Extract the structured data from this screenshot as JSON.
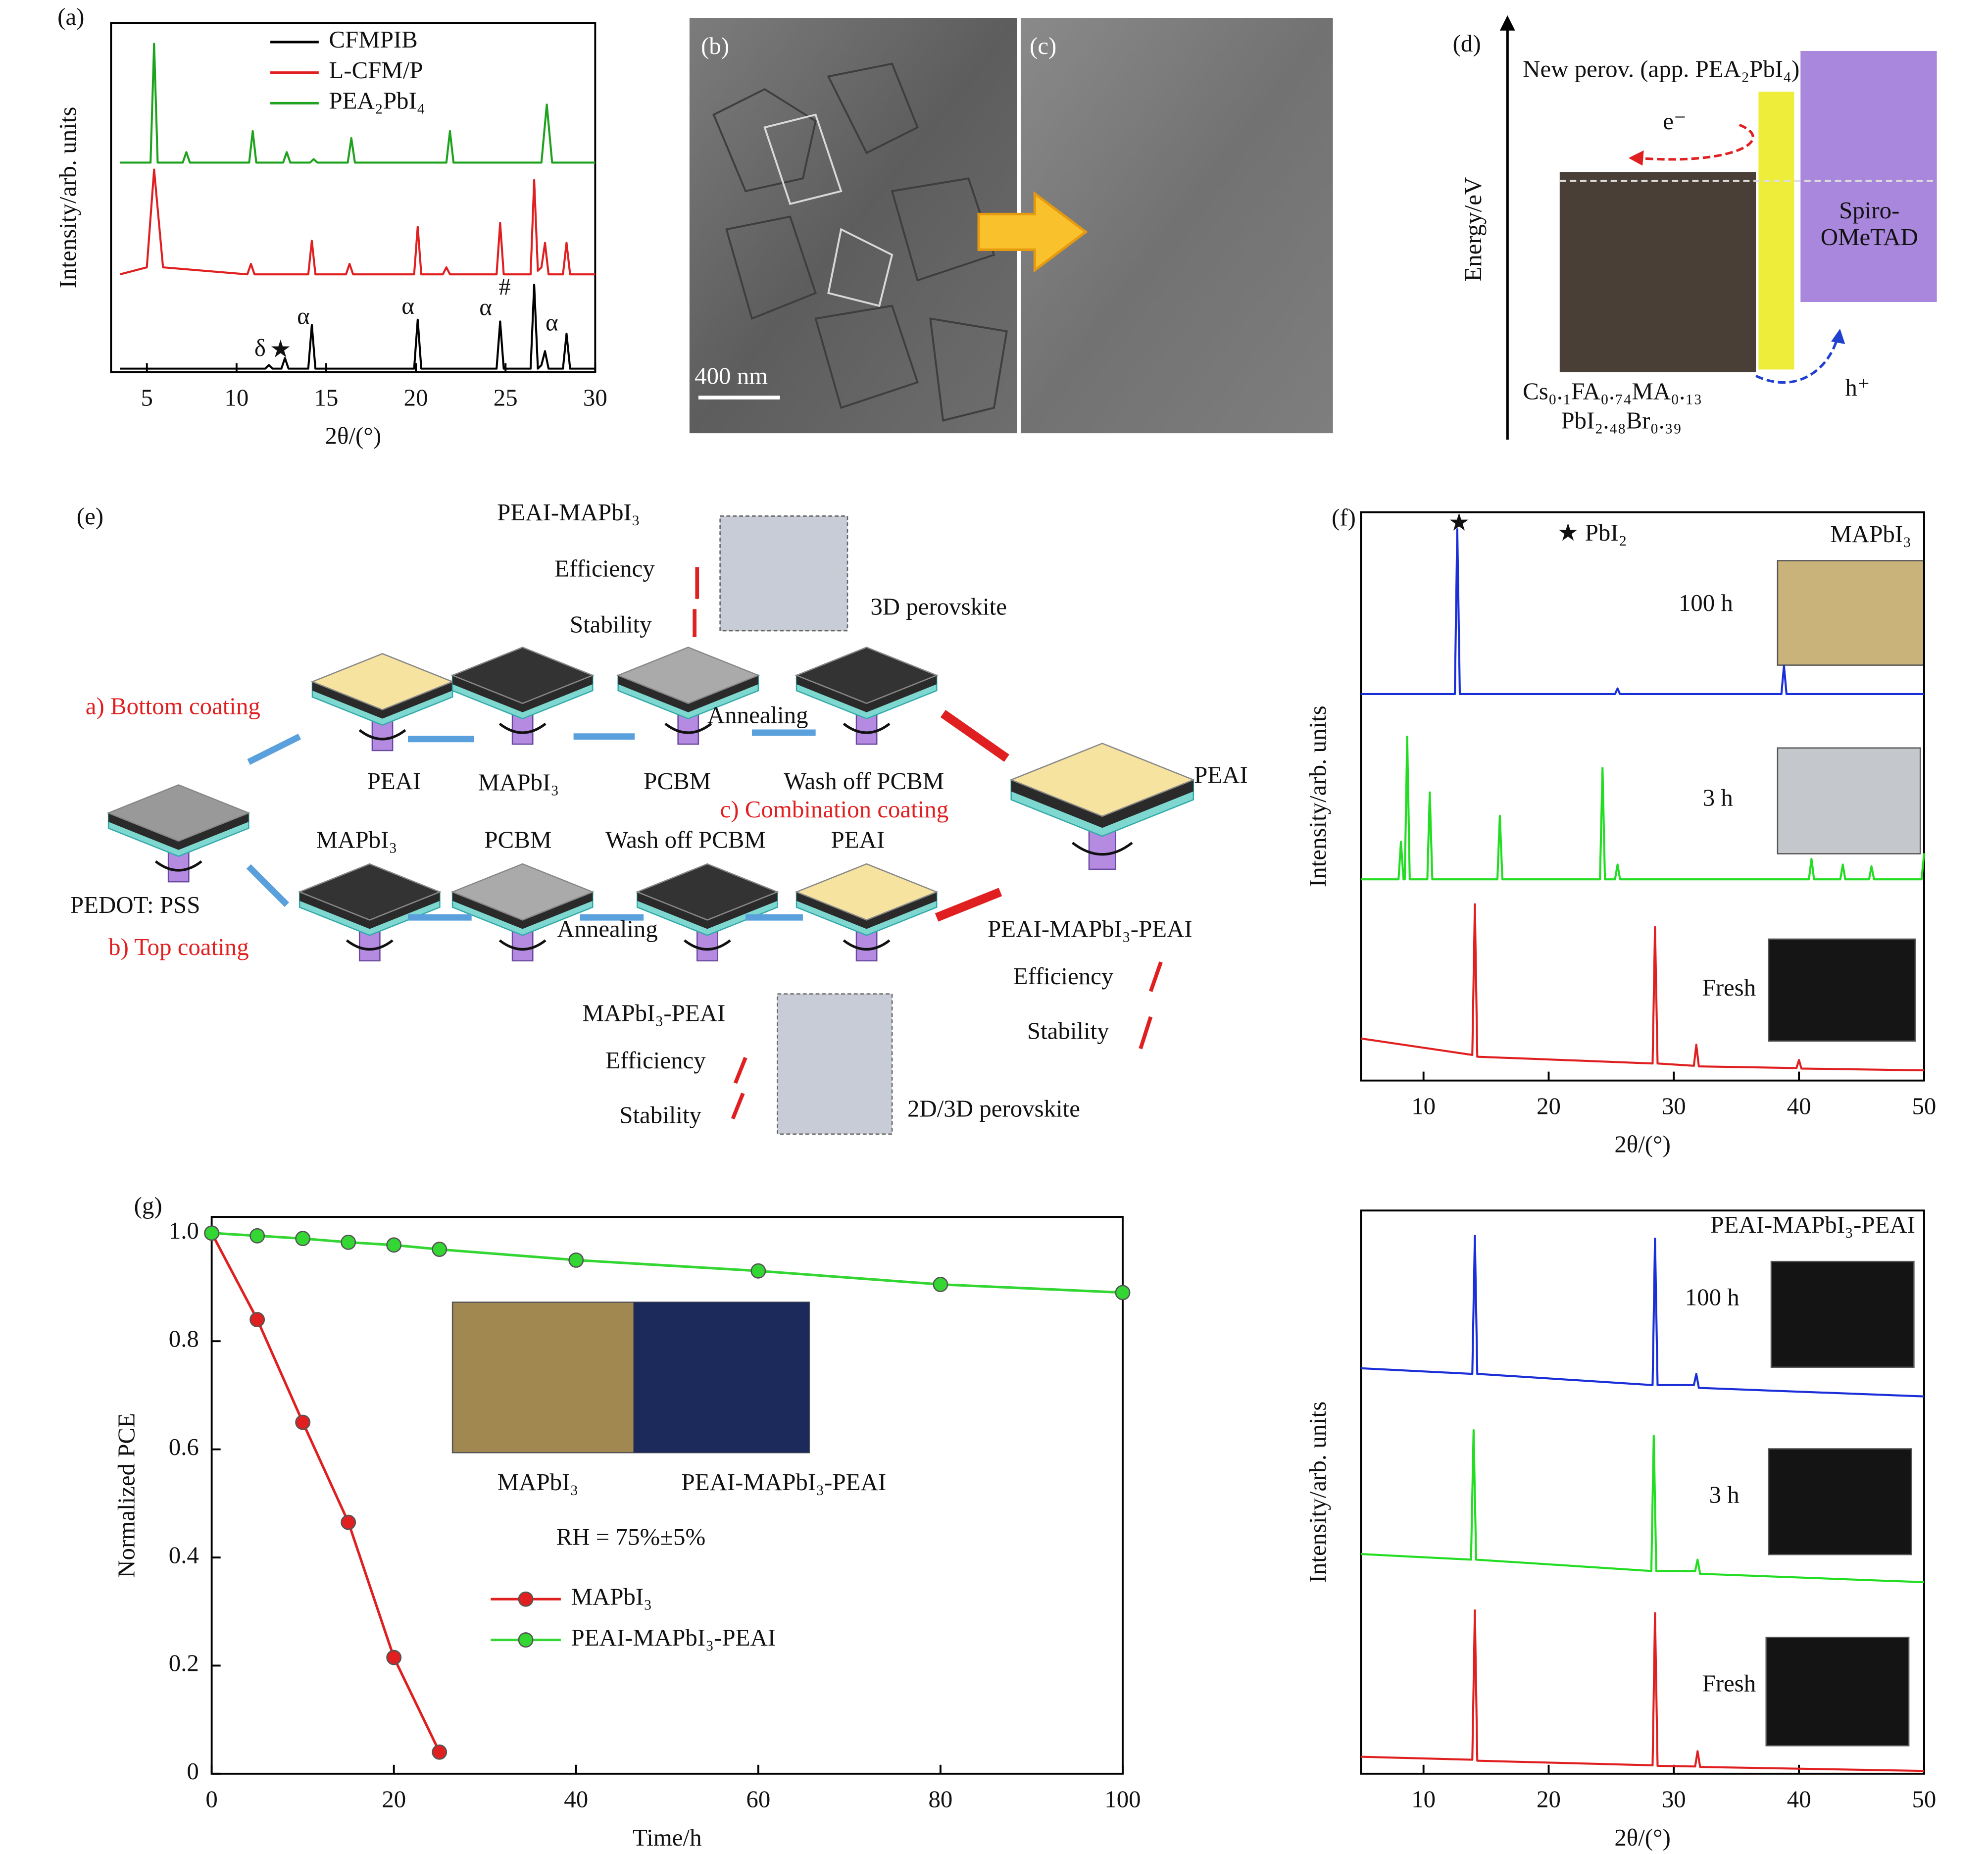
{
  "chart_data": [
    {
      "type": "line",
      "label": "(a)",
      "xlabel": "2θ/(°)",
      "ylabel": "Intensity/arb. units",
      "legend": "upper center",
      "xlim": [
        3,
        30
      ],
      "xticks": [
        5,
        10,
        15,
        20,
        25,
        30
      ],
      "ylim": [
        0,
        100
      ],
      "annotations": [
        "δ",
        "★",
        "α",
        "α",
        "α",
        "#",
        "α"
      ],
      "series": [
        {
          "name": "CFMPIB",
          "color": "#000000",
          "x": [
            3.5,
            11.6,
            11.8,
            12.0,
            12.5,
            12.7,
            12.9,
            14.0,
            14.2,
            14.4,
            19.9,
            20.1,
            20.3,
            24.5,
            24.7,
            24.9,
            26.4,
            26.6,
            26.8,
            27.0,
            27.2,
            27.4,
            28.2,
            28.4,
            28.6,
            30
          ],
          "values": [
            1,
            1,
            2,
            1,
            1,
            4,
            1,
            1,
            13.5,
            1,
            1,
            15,
            1,
            1,
            14.5,
            1,
            1,
            25,
            1,
            2,
            6,
            1,
            1,
            11,
            1,
            1
          ]
        },
        {
          "name": "L-CFM/P",
          "color": "#e02020",
          "x": [
            3.5,
            5.0,
            5.4,
            5.9,
            10.6,
            10.8,
            11.0,
            14.0,
            14.2,
            14.4,
            16.1,
            16.3,
            16.5,
            19.9,
            20.1,
            20.3,
            21.5,
            21.7,
            21.9,
            24.5,
            24.7,
            24.9,
            26.4,
            26.6,
            26.8,
            27.0,
            27.2,
            27.4,
            28.2,
            28.4,
            28.6,
            30
          ],
          "values": [
            28,
            30,
            58,
            30,
            28,
            31,
            28,
            28,
            37.6,
            28,
            28,
            31,
            28,
            28,
            41.6,
            28,
            28,
            30,
            28,
            28,
            42.7,
            28,
            28,
            55,
            29,
            30,
            37,
            28,
            28,
            37,
            28,
            28
          ]
        },
        {
          "name": "PEA₂PbI₄",
          "color": "#1fa31f",
          "x": [
            3.5,
            5.2,
            5.4,
            5.6,
            7.0,
            7.2,
            7.4,
            10.7,
            10.9,
            11.1,
            12.6,
            12.8,
            13.0,
            14.1,
            14.3,
            14.5,
            16.2,
            16.4,
            16.6,
            21.7,
            21.9,
            22.1,
            27.0,
            27.3,
            27.6,
            30
          ],
          "values": [
            60,
            60,
            94,
            60,
            60,
            63,
            60,
            60,
            69,
            60,
            60,
            63,
            60,
            60,
            61,
            60,
            60,
            67,
            60,
            60,
            69,
            60,
            60,
            76.6,
            60,
            60
          ]
        }
      ]
    },
    {
      "type": "line",
      "label": "(f)",
      "title": "MAPbI₃",
      "xlabel": "2θ/(°)",
      "ylabel": "Intensity/arb. units",
      "xlim": [
        5,
        50
      ],
      "xticks": [
        10,
        20,
        30,
        40,
        50
      ],
      "ylim": [
        0,
        100
      ],
      "annotations": [
        "★",
        "★ PbI₂"
      ],
      "series": [
        {
          "name": "100 h",
          "color": "#1a2fd8",
          "x": [
            5,
            12.5,
            12.7,
            12.9,
            25.3,
            25.5,
            25.7,
            38.6,
            38.8,
            39.0,
            50
          ],
          "values": [
            68,
            68,
            97,
            68,
            68,
            69,
            68,
            68,
            73,
            68,
            68
          ]
        },
        {
          "name": "3 h",
          "color": "#22dd22",
          "x": [
            5,
            8.0,
            8.2,
            8.4,
            8.5,
            8.7,
            8.9,
            10.3,
            10.5,
            10.7,
            15.9,
            16.1,
            16.3,
            24.1,
            24.3,
            24.5,
            25.3,
            25.5,
            25.7,
            40.8,
            41.0,
            41.2,
            43.3,
            43.5,
            43.7,
            45.6,
            45.8,
            46.0,
            49.8,
            50
          ],
          "values": [
            35.4,
            35.4,
            42,
            35.4,
            35.4,
            60.5,
            35.4,
            35.4,
            50.7,
            35.4,
            35.4,
            46.6,
            35.4,
            35.4,
            55,
            35.4,
            35.4,
            38,
            35.4,
            35.4,
            39,
            35.4,
            35.4,
            38,
            35.4,
            35.4,
            37.7,
            35.4,
            35.4,
            40
          ]
        },
        {
          "name": "Fresh",
          "color": "#e02020",
          "x": [
            5,
            13.9,
            14.1,
            14.3,
            28.3,
            28.5,
            28.7,
            31.6,
            31.8,
            32.0,
            39.8,
            40.0,
            40.2,
            50
          ],
          "values": [
            7.4,
            4.5,
            31,
            4.2,
            3,
            27,
            3,
            2.6,
            6.3,
            2.5,
            2.2,
            3.6,
            2.1,
            1.8
          ]
        }
      ]
    },
    {
      "type": "line",
      "title": "PEAI-MAPbI₃-PEAI",
      "xlabel": "2θ/(°)",
      "ylabel": "Intensity/arb. units",
      "xlim": [
        5,
        50
      ],
      "xticks": [
        10,
        20,
        30,
        40,
        50
      ],
      "ylim": [
        0,
        100
      ],
      "series": [
        {
          "name": "100 h",
          "color": "#1a2fd8",
          "x": [
            5,
            13.9,
            14.1,
            14.3,
            28.3,
            28.5,
            28.7,
            31.6,
            31.8,
            32.0,
            50
          ],
          "values": [
            72,
            71,
            95.5,
            71,
            69,
            95,
            69,
            69,
            71,
            68.5,
            67
          ]
        },
        {
          "name": "3 h",
          "color": "#22dd22",
          "x": [
            5,
            13.8,
            14.0,
            14.2,
            28.2,
            28.4,
            28.6,
            31.7,
            31.9,
            32.1,
            50
          ],
          "values": [
            39,
            38,
            61,
            38,
            36,
            60,
            36,
            36,
            38,
            35.5,
            34
          ]
        },
        {
          "name": "Fresh",
          "color": "#e02020",
          "x": [
            5,
            13.9,
            14.1,
            14.3,
            28.3,
            28.5,
            28.7,
            31.7,
            31.9,
            32.1,
            50
          ],
          "values": [
            3,
            2.5,
            29,
            2.3,
            1.5,
            28.5,
            1.4,
            1.3,
            4,
            1.2,
            0.5
          ]
        }
      ]
    },
    {
      "type": "line",
      "label": "(g)",
      "xlabel": "Time/h",
      "ylabel": "Normalized PCE",
      "markers": true,
      "legend": "lower left",
      "xlim": [
        0,
        100
      ],
      "xticks": [
        0,
        20,
        40,
        60,
        80,
        100
      ],
      "ylim": [
        0,
        1.03
      ],
      "yticks": [
        0,
        0.2,
        0.4,
        0.6,
        0.8,
        {
          "value": 1,
          "label": "1.0"
        }
      ],
      "annotations": [
        "MAPbI₃",
        "PEAI-MAPbI₃-PEAI",
        "RH = 75%±5%"
      ],
      "series": [
        {
          "name": "MAPbI₃",
          "color": "#e02020",
          "x": [
            0,
            5,
            10,
            15,
            20,
            25
          ],
          "values": [
            1.0,
            0.84,
            0.65,
            0.465,
            0.215,
            0.04
          ]
        },
        {
          "name": "PEAI-MAPbI₃-PEAI",
          "color": "#33d633",
          "x": [
            0,
            5,
            10,
            15,
            20,
            25,
            40,
            60,
            80,
            100
          ],
          "values": [
            1.0,
            0.995,
            0.99,
            0.983,
            0.978,
            0.97,
            0.95,
            0.93,
            0.905,
            0.89
          ]
        }
      ]
    }
  ],
  "figure": {
    "b": {
      "label": "(b)",
      "scale": "400 nm"
    },
    "c": {
      "label": "(c)"
    },
    "d": {
      "label": "(d)",
      "top": "New perov. (app. PEA₂PbI₄)",
      "electron": "e⁻",
      "axis": "Energy/eV",
      "htl": [
        "Spiro-",
        "OMeTAD"
      ],
      "absorber": [
        "Cs₀.₁FA₀.₇₄MA₀.₁₃",
        "PbI₂.₄₈Br₀.₃₉"
      ],
      "hole": "h⁺"
    },
    "e": {
      "label": "(e)",
      "texts": [
        "PEAI-MAPbI₃",
        "Efficiency",
        "Stability",
        "3D perovskite",
        "a) Bottom coating",
        "PEAI",
        "MAPbI₃",
        "PCBM",
        "Annealing",
        "Wash off PCBM",
        "c) Combination coating",
        "PEAI",
        "MAPbI₃",
        "PCBM",
        "Wash off PCBM",
        "PEAI",
        "PEDOT: PSS",
        "b) Top coating",
        "Annealing",
        "PEAI-MAPbI₃-PEAI",
        "Efficiency",
        "Stability",
        "MAPbI₃-PEAI",
        "Efficiency",
        "Stability",
        "2D/3D perovskite"
      ]
    }
  }
}
